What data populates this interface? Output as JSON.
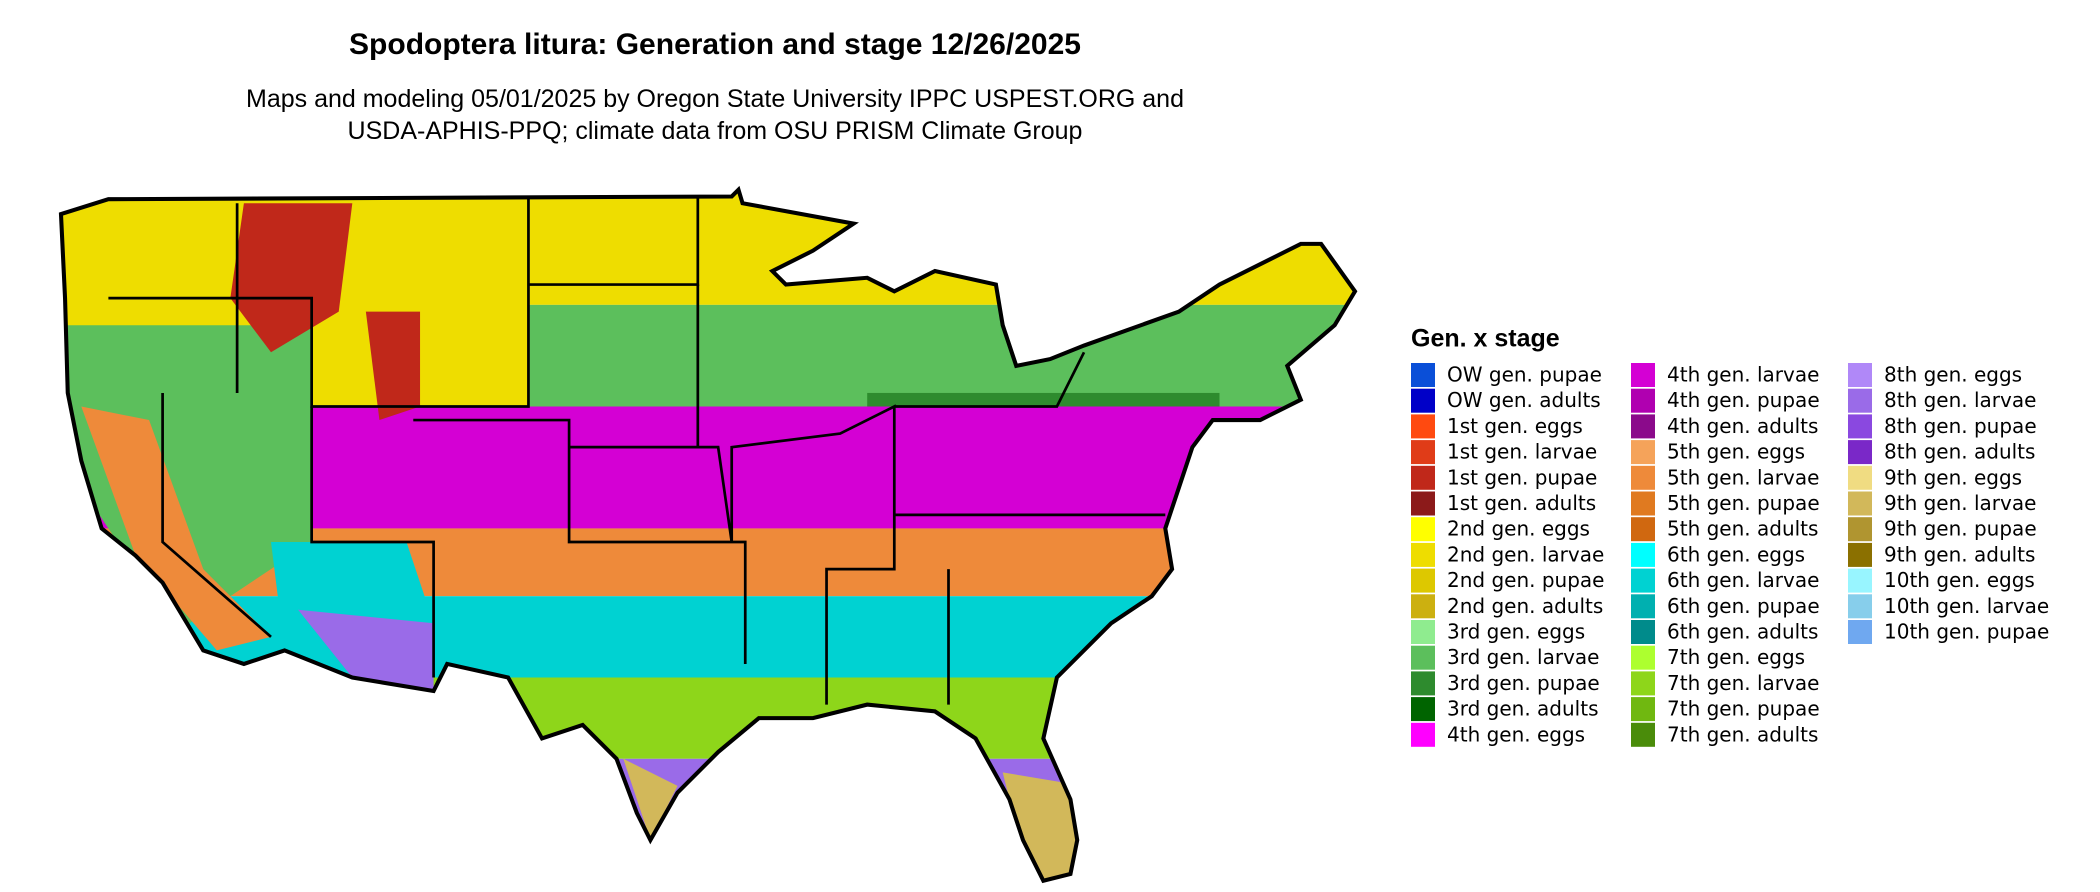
{
  "title": "Spodoptera litura: Generation and stage 12/26/2025",
  "subtitle": [
    "Maps and modeling 05/01/2025 by Oregon State University IPPC USPEST.ORG and",
    "USDA-APHIS-PPQ; climate data from OSU PRISM Climate Group"
  ],
  "legend": {
    "title": "Gen. x stage",
    "items": [
      {
        "label": "OW gen. pupae",
        "color": "#0a4fd8"
      },
      {
        "label": "OW gen. adults",
        "color": "#0000c8"
      },
      {
        "label": "1st gen. eggs",
        "color": "#ff4a10"
      },
      {
        "label": "1st gen. larvae",
        "color": "#e03c18"
      },
      {
        "label": "1st gen. pupae",
        "color": "#c0281a"
      },
      {
        "label": "1st gen. adults",
        "color": "#8c1a1a"
      },
      {
        "label": "2nd gen. eggs",
        "color": "#ffff00"
      },
      {
        "label": "2nd gen. larvae",
        "color": "#eedd00"
      },
      {
        "label": "2nd gen. pupae",
        "color": "#ddc800"
      },
      {
        "label": "2nd gen. adults",
        "color": "#ccb010"
      },
      {
        "label": "3rd gen. eggs",
        "color": "#8fec8f"
      },
      {
        "label": "3rd gen. larvae",
        "color": "#5cbf5c"
      },
      {
        "label": "3rd gen. pupae",
        "color": "#2e8b2e"
      },
      {
        "label": "3rd gen. adults",
        "color": "#006400"
      },
      {
        "label": "4th gen. eggs",
        "color": "#ff00ff"
      },
      {
        "label": "4th gen. larvae",
        "color": "#d400d4"
      },
      {
        "label": "4th gen. pupae",
        "color": "#b000b0"
      },
      {
        "label": "4th gen. adults",
        "color": "#8b0a8b"
      },
      {
        "label": "5th gen. eggs",
        "color": "#f5a35a"
      },
      {
        "label": "5th gen. larvae",
        "color": "#ee8a3a"
      },
      {
        "label": "5th gen. pupae",
        "color": "#e07a20"
      },
      {
        "label": "5th gen. adults",
        "color": "#d06810"
      },
      {
        "label": "6th gen. eggs",
        "color": "#00ffff"
      },
      {
        "label": "6th gen. larvae",
        "color": "#00d2d2"
      },
      {
        "label": "6th gen. pupae",
        "color": "#00b0b0"
      },
      {
        "label": "6th gen. adults",
        "color": "#008b8b"
      },
      {
        "label": "7th gen. eggs",
        "color": "#adff2f"
      },
      {
        "label": "7th gen. larvae",
        "color": "#8ed61a"
      },
      {
        "label": "7th gen. pupae",
        "color": "#70b810"
      },
      {
        "label": "7th gen. adults",
        "color": "#4a8c0a"
      },
      {
        "label": "8th gen. eggs",
        "color": "#b088f8"
      },
      {
        "label": "8th gen. larvae",
        "color": "#9a6be8"
      },
      {
        "label": "8th gen. pupae",
        "color": "#8a48e0"
      },
      {
        "label": "8th gen. adults",
        "color": "#7a28c8"
      },
      {
        "label": "9th gen. eggs",
        "color": "#f0dc82"
      },
      {
        "label": "9th gen. larvae",
        "color": "#d2b85a"
      },
      {
        "label": "9th gen. pupae",
        "color": "#b09530"
      },
      {
        "label": "9th gen. adults",
        "color": "#8b7000"
      },
      {
        "label": "10th gen. eggs",
        "color": "#98f5ff"
      },
      {
        "label": "10th gen. larvae",
        "color": "#87ceeb"
      },
      {
        "label": "10th gen. pupae",
        "color": "#6fa8f0"
      }
    ]
  }
}
